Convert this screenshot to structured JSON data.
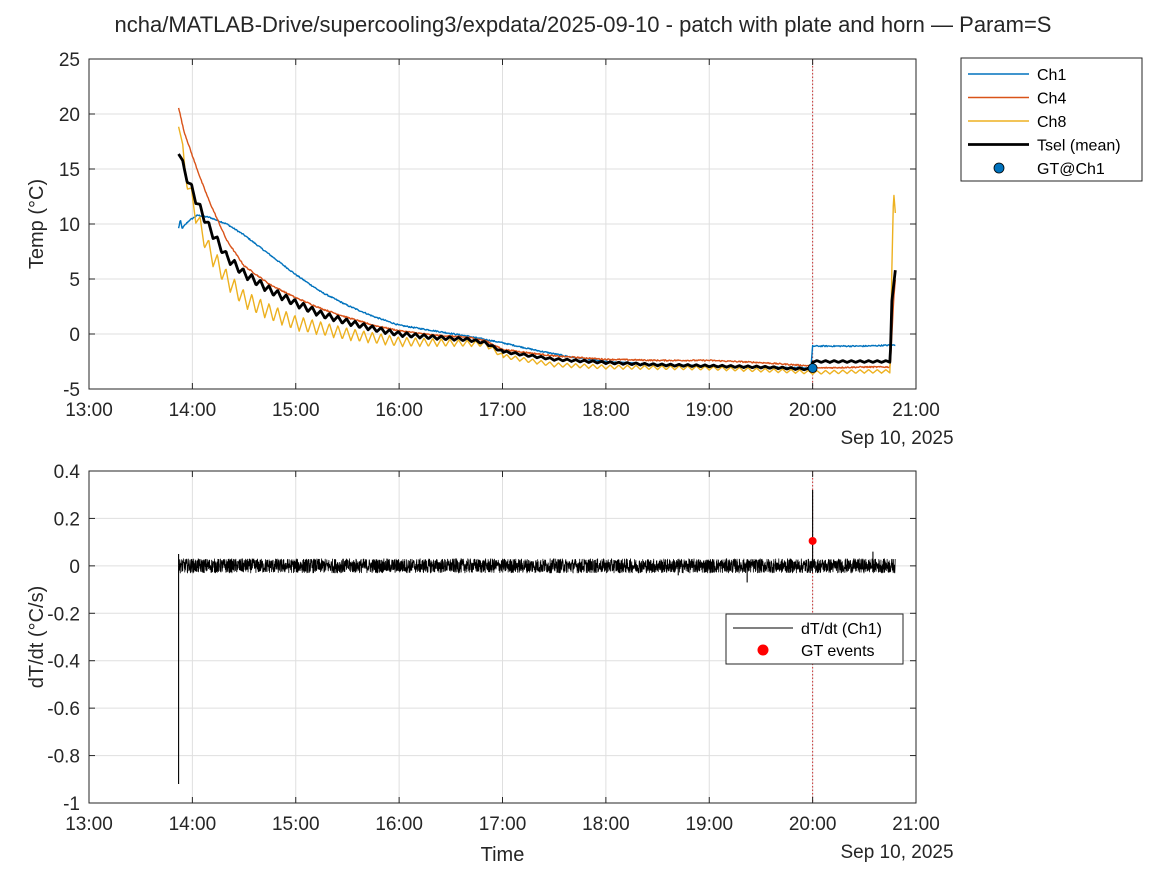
{
  "window": {
    "title": "ncha/MATLAB-Drive/supercooling3/expdata/2025-09-10 - patch with plate and horn — Param=S"
  },
  "chart_data": [
    {
      "type": "line",
      "title": "ncha/MATLAB-Drive/supercooling3/expdata/2025-09-10 - patch with plate and horn — Param=S",
      "xlabel": "",
      "ylabel": "Temp (°C)",
      "x_date_label": "Sep 10, 2025",
      "xlim": [
        "13:00",
        "21:00"
      ],
      "ylim": [
        -5,
        25
      ],
      "xticks": [
        "13:00",
        "14:00",
        "15:00",
        "16:00",
        "17:00",
        "18:00",
        "19:00",
        "20:00",
        "21:00"
      ],
      "yticks": [
        "-5",
        "0",
        "5",
        "10",
        "15",
        "20",
        "25"
      ],
      "grid": true,
      "legend_position": "outside-top-right",
      "marker_line_time": "20:00",
      "series": [
        {
          "name": "Ch1",
          "color": "#0072BD",
          "width": 1.4,
          "points": [
            [
              "13:52",
              9.6
            ],
            [
              "13:53",
              10.4
            ],
            [
              "13:54",
              9.6
            ],
            [
              "13:58",
              10.3
            ],
            [
              "14:03",
              10.8
            ],
            [
              "14:10",
              10.6
            ],
            [
              "14:20",
              10.0
            ],
            [
              "14:30",
              9.0
            ],
            [
              "14:45",
              7.2
            ],
            [
              "15:00",
              5.4
            ],
            [
              "15:15",
              3.8
            ],
            [
              "15:30",
              2.6
            ],
            [
              "15:45",
              1.6
            ],
            [
              "16:00",
              0.8
            ],
            [
              "16:20",
              0.3
            ],
            [
              "16:40",
              -0.2
            ],
            [
              "17:00",
              -0.8
            ],
            [
              "17:20",
              -1.5
            ],
            [
              "17:40",
              -2.1
            ],
            [
              "18:00",
              -2.5
            ],
            [
              "18:30",
              -2.8
            ],
            [
              "19:00",
              -2.9
            ],
            [
              "19:30",
              -3.0
            ],
            [
              "19:59",
              -3.1
            ],
            [
              "20:00",
              -1.1
            ],
            [
              "20:30",
              -1.1
            ],
            [
              "20:48",
              -1.0
            ]
          ]
        },
        {
          "name": "Ch4",
          "color": "#D95319",
          "width": 1.4,
          "points": [
            [
              "13:52",
              20.6
            ],
            [
              "13:55",
              18.5
            ],
            [
              "14:00",
              16.2
            ],
            [
              "14:05",
              14.0
            ],
            [
              "14:10",
              12.0
            ],
            [
              "14:20",
              8.5
            ],
            [
              "14:30",
              6.2
            ],
            [
              "14:45",
              4.5
            ],
            [
              "15:00",
              3.3
            ],
            [
              "15:15",
              2.3
            ],
            [
              "15:30",
              1.5
            ],
            [
              "15:45",
              0.8
            ],
            [
              "16:00",
              0.3
            ],
            [
              "16:20",
              -0.1
            ],
            [
              "16:40",
              -0.3
            ],
            [
              "16:50",
              -0.6
            ],
            [
              "17:00",
              -1.4
            ],
            [
              "17:30",
              -2.0
            ],
            [
              "18:00",
              -2.3
            ],
            [
              "18:30",
              -2.4
            ],
            [
              "19:00",
              -2.4
            ],
            [
              "19:30",
              -2.6
            ],
            [
              "19:59",
              -2.9
            ],
            [
              "20:00",
              -3.1
            ],
            [
              "20:30",
              -3.0
            ],
            [
              "20:45",
              -3.0
            ],
            [
              "20:47",
              3.0
            ],
            [
              "20:48",
              5.0
            ]
          ]
        },
        {
          "name": "Ch8",
          "color": "#EDB120",
          "width": 1.4,
          "points": [
            [
              "13:52",
              19.8
            ],
            [
              "13:55",
              15.5
            ],
            [
              "14:00",
              12.0
            ],
            [
              "14:05",
              9.5
            ],
            [
              "14:10",
              7.5
            ],
            [
              "14:20",
              5.0
            ],
            [
              "14:30",
              3.2
            ],
            [
              "14:45",
              2.0
            ],
            [
              "15:00",
              1.0
            ],
            [
              "15:15",
              0.5
            ],
            [
              "15:30",
              0.0
            ],
            [
              "16:00",
              -0.7
            ],
            [
              "16:30",
              -0.8
            ],
            [
              "16:50",
              -0.9
            ],
            [
              "17:00",
              -2.0
            ],
            [
              "17:30",
              -2.8
            ],
            [
              "18:00",
              -3.0
            ],
            [
              "19:00",
              -3.1
            ],
            [
              "19:50",
              -3.4
            ],
            [
              "20:00",
              -3.5
            ],
            [
              "20:30",
              -3.4
            ],
            [
              "20:45",
              -3.4
            ],
            [
              "20:46",
              6.0
            ],
            [
              "20:47",
              13.0
            ],
            [
              "20:48",
              11.0
            ]
          ]
        },
        {
          "name": "Tsel (mean)",
          "color": "#000000",
          "width": 2.8,
          "points": [
            [
              "13:52",
              16.8
            ],
            [
              "13:55",
              15.0
            ],
            [
              "14:00",
              13.0
            ],
            [
              "14:05",
              11.2
            ],
            [
              "14:10",
              9.6
            ],
            [
              "14:20",
              7.0
            ],
            [
              "14:30",
              5.5
            ],
            [
              "14:45",
              4.0
            ],
            [
              "15:00",
              2.8
            ],
            [
              "15:15",
              1.8
            ],
            [
              "15:30",
              1.1
            ],
            [
              "15:45",
              0.5
            ],
            [
              "16:00",
              0.0
            ],
            [
              "16:20",
              -0.3
            ],
            [
              "16:40",
              -0.5
            ],
            [
              "16:50",
              -0.8
            ],
            [
              "17:00",
              -1.6
            ],
            [
              "17:30",
              -2.3
            ],
            [
              "18:00",
              -2.6
            ],
            [
              "18:30",
              -2.8
            ],
            [
              "19:00",
              -2.9
            ],
            [
              "19:30",
              -3.0
            ],
            [
              "19:59",
              -3.2
            ],
            [
              "20:00",
              -2.5
            ],
            [
              "20:30",
              -2.5
            ],
            [
              "20:45",
              -2.5
            ],
            [
              "20:46",
              3.0
            ],
            [
              "20:48",
              5.8
            ]
          ]
        }
      ],
      "marker_series": [
        {
          "name": "GT@Ch1",
          "color": "#0072BD",
          "points": [
            [
              "20:00",
              -3.1
            ]
          ]
        }
      ],
      "oscillation_overlay": [
        {
          "series": "Ch8",
          "from": "13:52",
          "to": "17:00",
          "amplitude_start": 1.2,
          "amplitude_end": 0.25,
          "period_min": 5
        },
        {
          "series": "Ch8",
          "from": "17:00",
          "to": "20:45",
          "amplitude_start": 0.25,
          "amplitude_end": 0.2,
          "period_min": 5
        },
        {
          "series": "Tsel (mean)",
          "from": "13:52",
          "to": "17:00",
          "amplitude_start": 0.55,
          "amplitude_end": 0.12,
          "period_min": 5
        },
        {
          "series": "Tsel (mean)",
          "from": "17:00",
          "to": "20:45",
          "amplitude_start": 0.12,
          "amplitude_end": 0.1,
          "period_min": 5
        }
      ]
    },
    {
      "type": "line",
      "title": "",
      "xlabel": "Time",
      "ylabel": "dT/dt (°C/s)",
      "x_date_label": "Sep 10, 2025",
      "xlim": [
        "13:00",
        "21:00"
      ],
      "ylim": [
        -1,
        0.4
      ],
      "xticks": [
        "13:00",
        "14:00",
        "15:00",
        "16:00",
        "17:00",
        "18:00",
        "19:00",
        "20:00",
        "21:00"
      ],
      "yticks": [
        "-1",
        "-0.8",
        "-0.6",
        "-0.4",
        "-0.2",
        "0",
        "0.2",
        "0.4"
      ],
      "grid": true,
      "legend_position": "right",
      "marker_line_time": "20:00",
      "series": [
        {
          "name": "dT/dt (Ch1)",
          "color": "#000000",
          "width": 0.8,
          "noise": {
            "from": "13:52",
            "to": "20:48",
            "center": 0.0,
            "amplitude": 0.03
          },
          "spikes": [
            [
              "13:52",
              -0.92
            ],
            [
              "13:52",
              0.05
            ],
            [
              "18:42",
              -0.04
            ],
            [
              "19:22",
              -0.07
            ],
            [
              "20:00",
              0.32
            ],
            [
              "20:35",
              0.06
            ]
          ]
        }
      ],
      "marker_series": [
        {
          "name": "GT events",
          "color": "#FF0000",
          "points": [
            [
              "20:00",
              0.105
            ]
          ]
        }
      ]
    }
  ]
}
